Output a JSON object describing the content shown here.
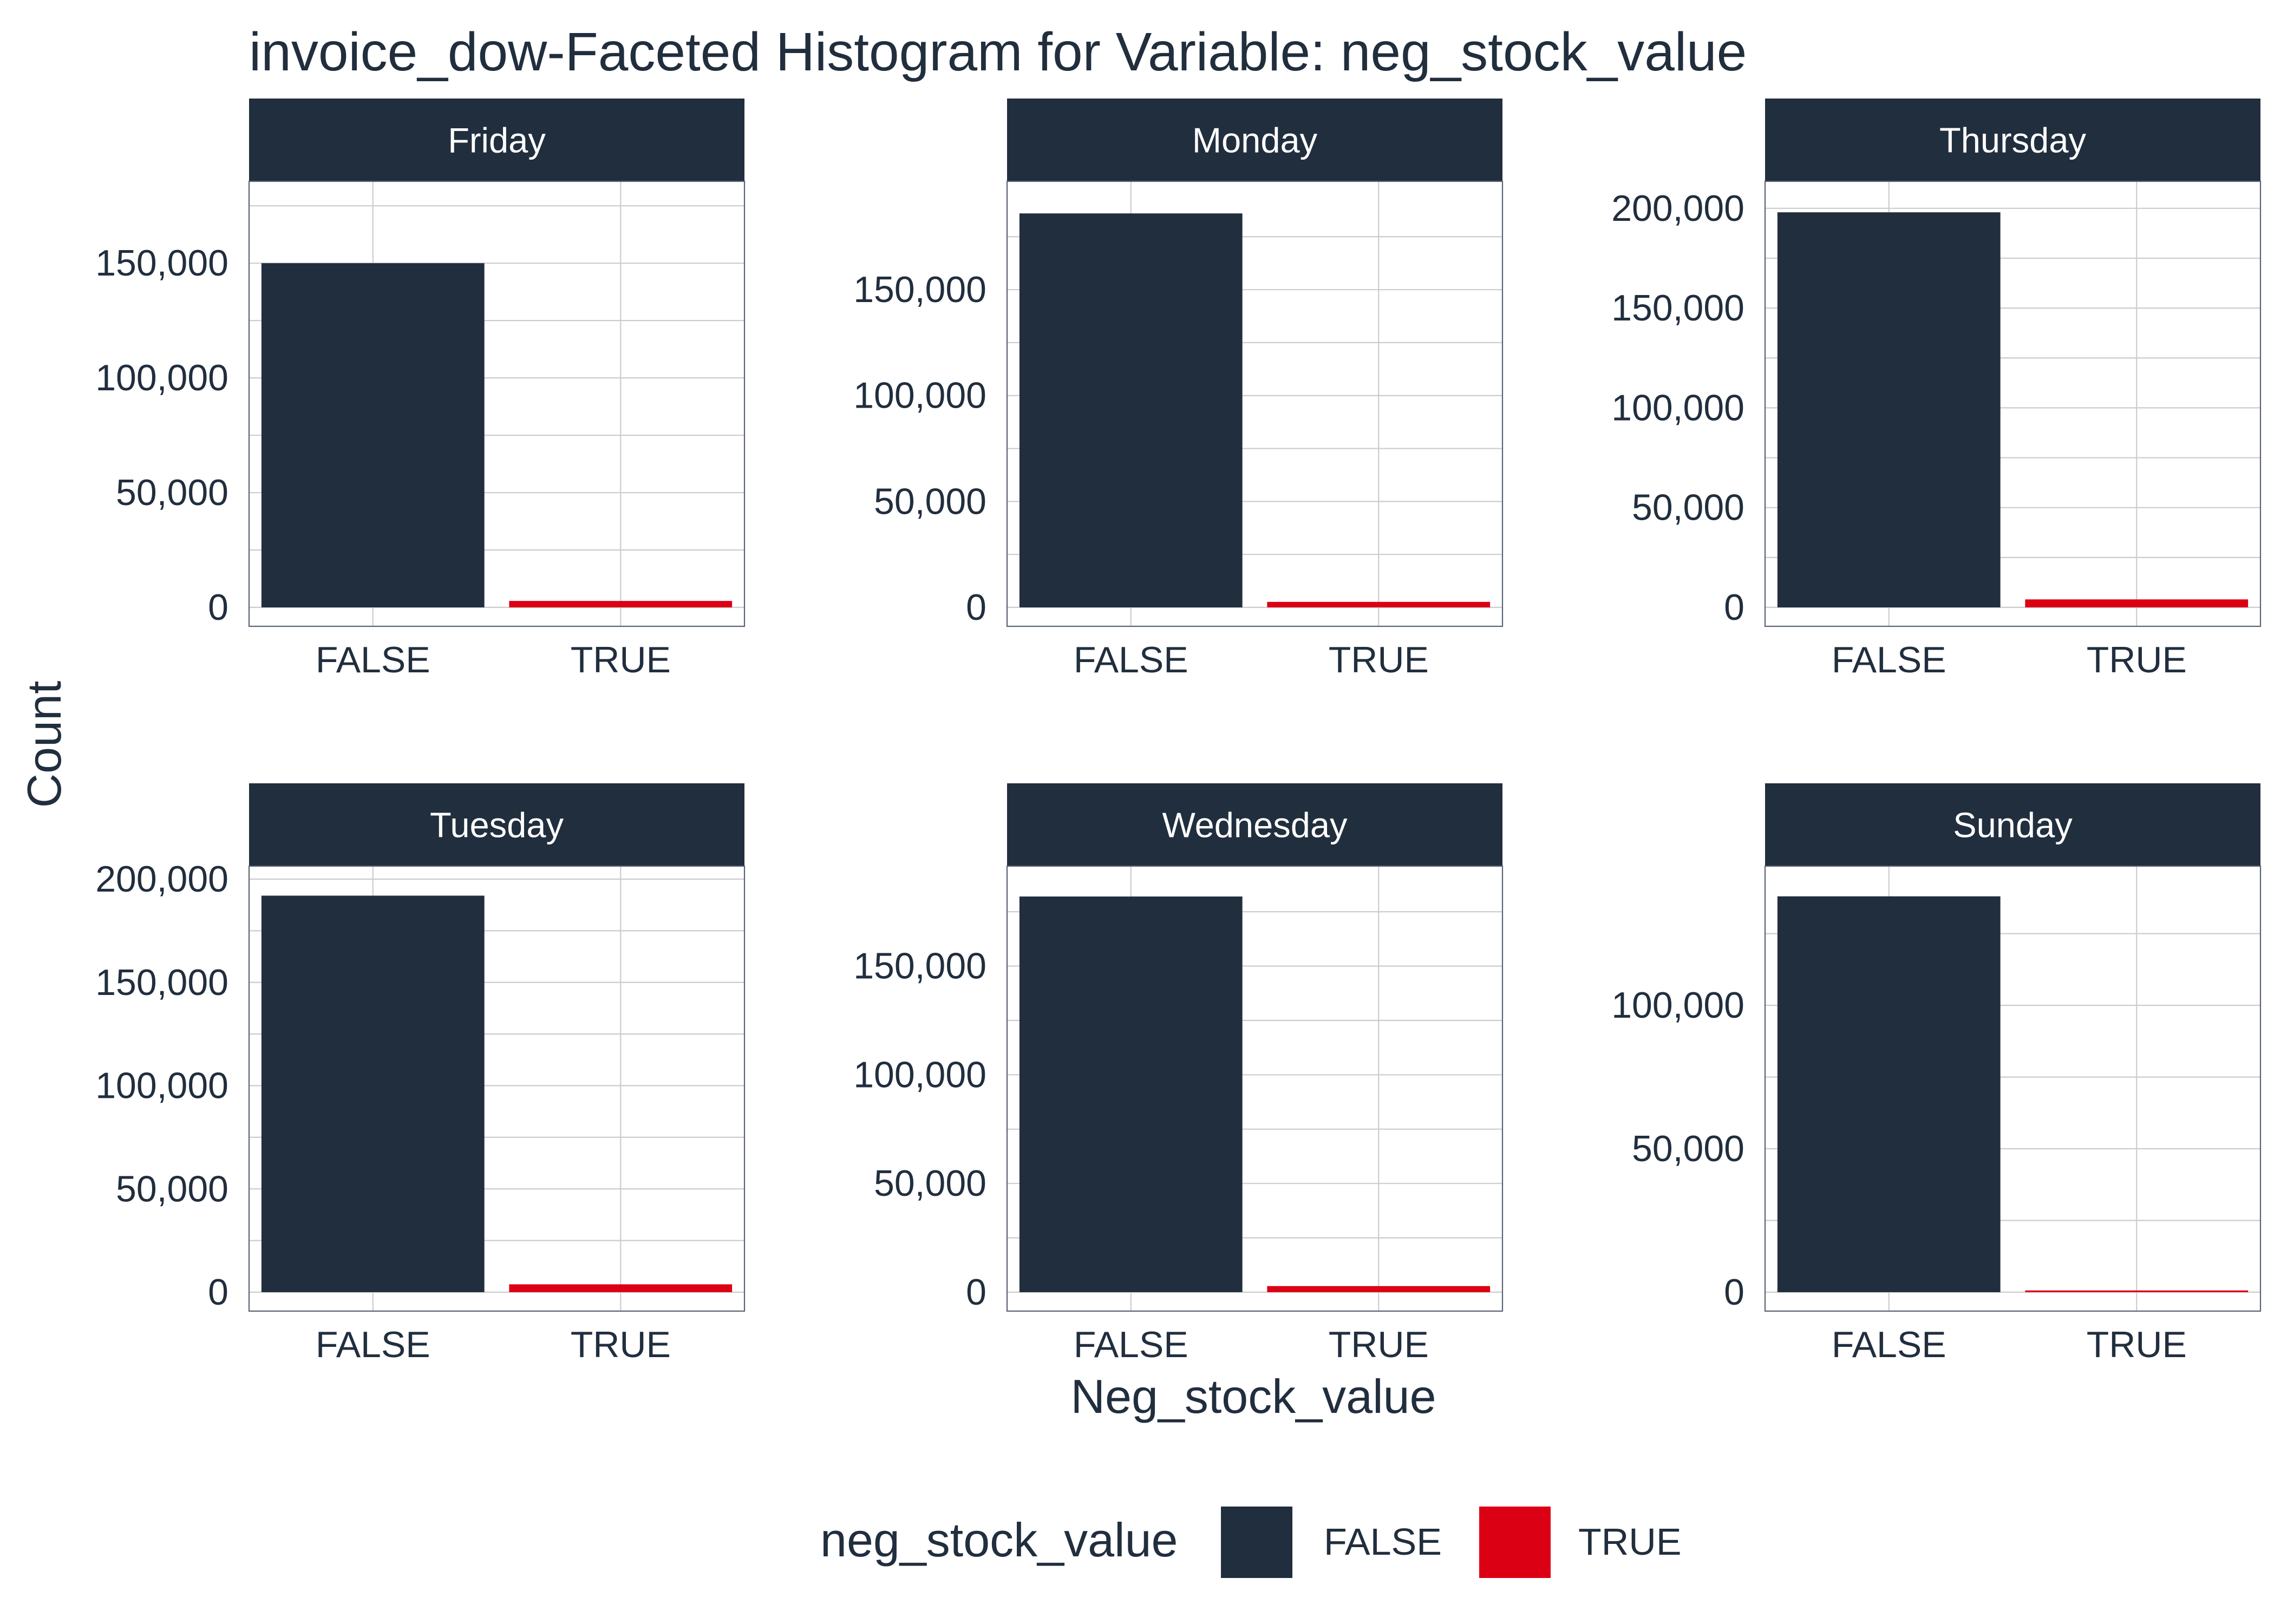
{
  "chart_data": {
    "type": "bar",
    "title": "invoice_dow-Faceted Histogram for Variable: neg_stock_value",
    "xlabel": "Neg_stock_value",
    "ylabel": "Count",
    "categories": [
      "FALSE",
      "TRUE"
    ],
    "colors": {
      "FALSE": "#212e3e",
      "TRUE": "#dc0015"
    },
    "strip_color": "#212e3e",
    "grid": true,
    "legend": {
      "title": "neg_stock_value",
      "placement": "bottom",
      "items": [
        "FALSE",
        "TRUE"
      ]
    },
    "facets": [
      {
        "name": "Friday",
        "values": [
          150000,
          2800
        ],
        "ylim": [
          0,
          180000
        ],
        "ticks": [
          0,
          50000,
          100000,
          150000
        ],
        "tick_labels": [
          "0",
          "50,000",
          "100,000",
          "150,000"
        ]
      },
      {
        "name": "Monday",
        "values": [
          186000,
          2600
        ],
        "ylim": [
          0,
          195000
        ],
        "ticks": [
          0,
          50000,
          100000,
          150000
        ],
        "tick_labels": [
          "0",
          "50,000",
          "100,000",
          "150,000"
        ]
      },
      {
        "name": "Thursday",
        "values": [
          198000,
          4000
        ],
        "ylim": [
          0,
          207000
        ],
        "ticks": [
          0,
          50000,
          100000,
          150000,
          200000
        ],
        "tick_labels": [
          "0",
          "50,000",
          "100,000",
          "150,000",
          "200,000"
        ]
      },
      {
        "name": "Tuesday",
        "values": [
          192000,
          3800
        ],
        "ylim": [
          0,
          200000
        ],
        "ticks": [
          0,
          50000,
          100000,
          150000,
          200000
        ],
        "tick_labels": [
          "0",
          "50,000",
          "100,000",
          "150,000",
          "200,000"
        ]
      },
      {
        "name": "Wednesday",
        "values": [
          182000,
          2800
        ],
        "ylim": [
          0,
          190000
        ],
        "ticks": [
          0,
          50000,
          100000,
          150000
        ],
        "tick_labels": [
          "0",
          "50,000",
          "100,000",
          "150,000"
        ]
      },
      {
        "name": "Sunday",
        "values": [
          138000,
          600
        ],
        "ylim": [
          0,
          144000
        ],
        "ticks": [
          0,
          50000,
          100000
        ],
        "tick_labels": [
          "0",
          "50,000",
          "100,000"
        ]
      }
    ]
  }
}
